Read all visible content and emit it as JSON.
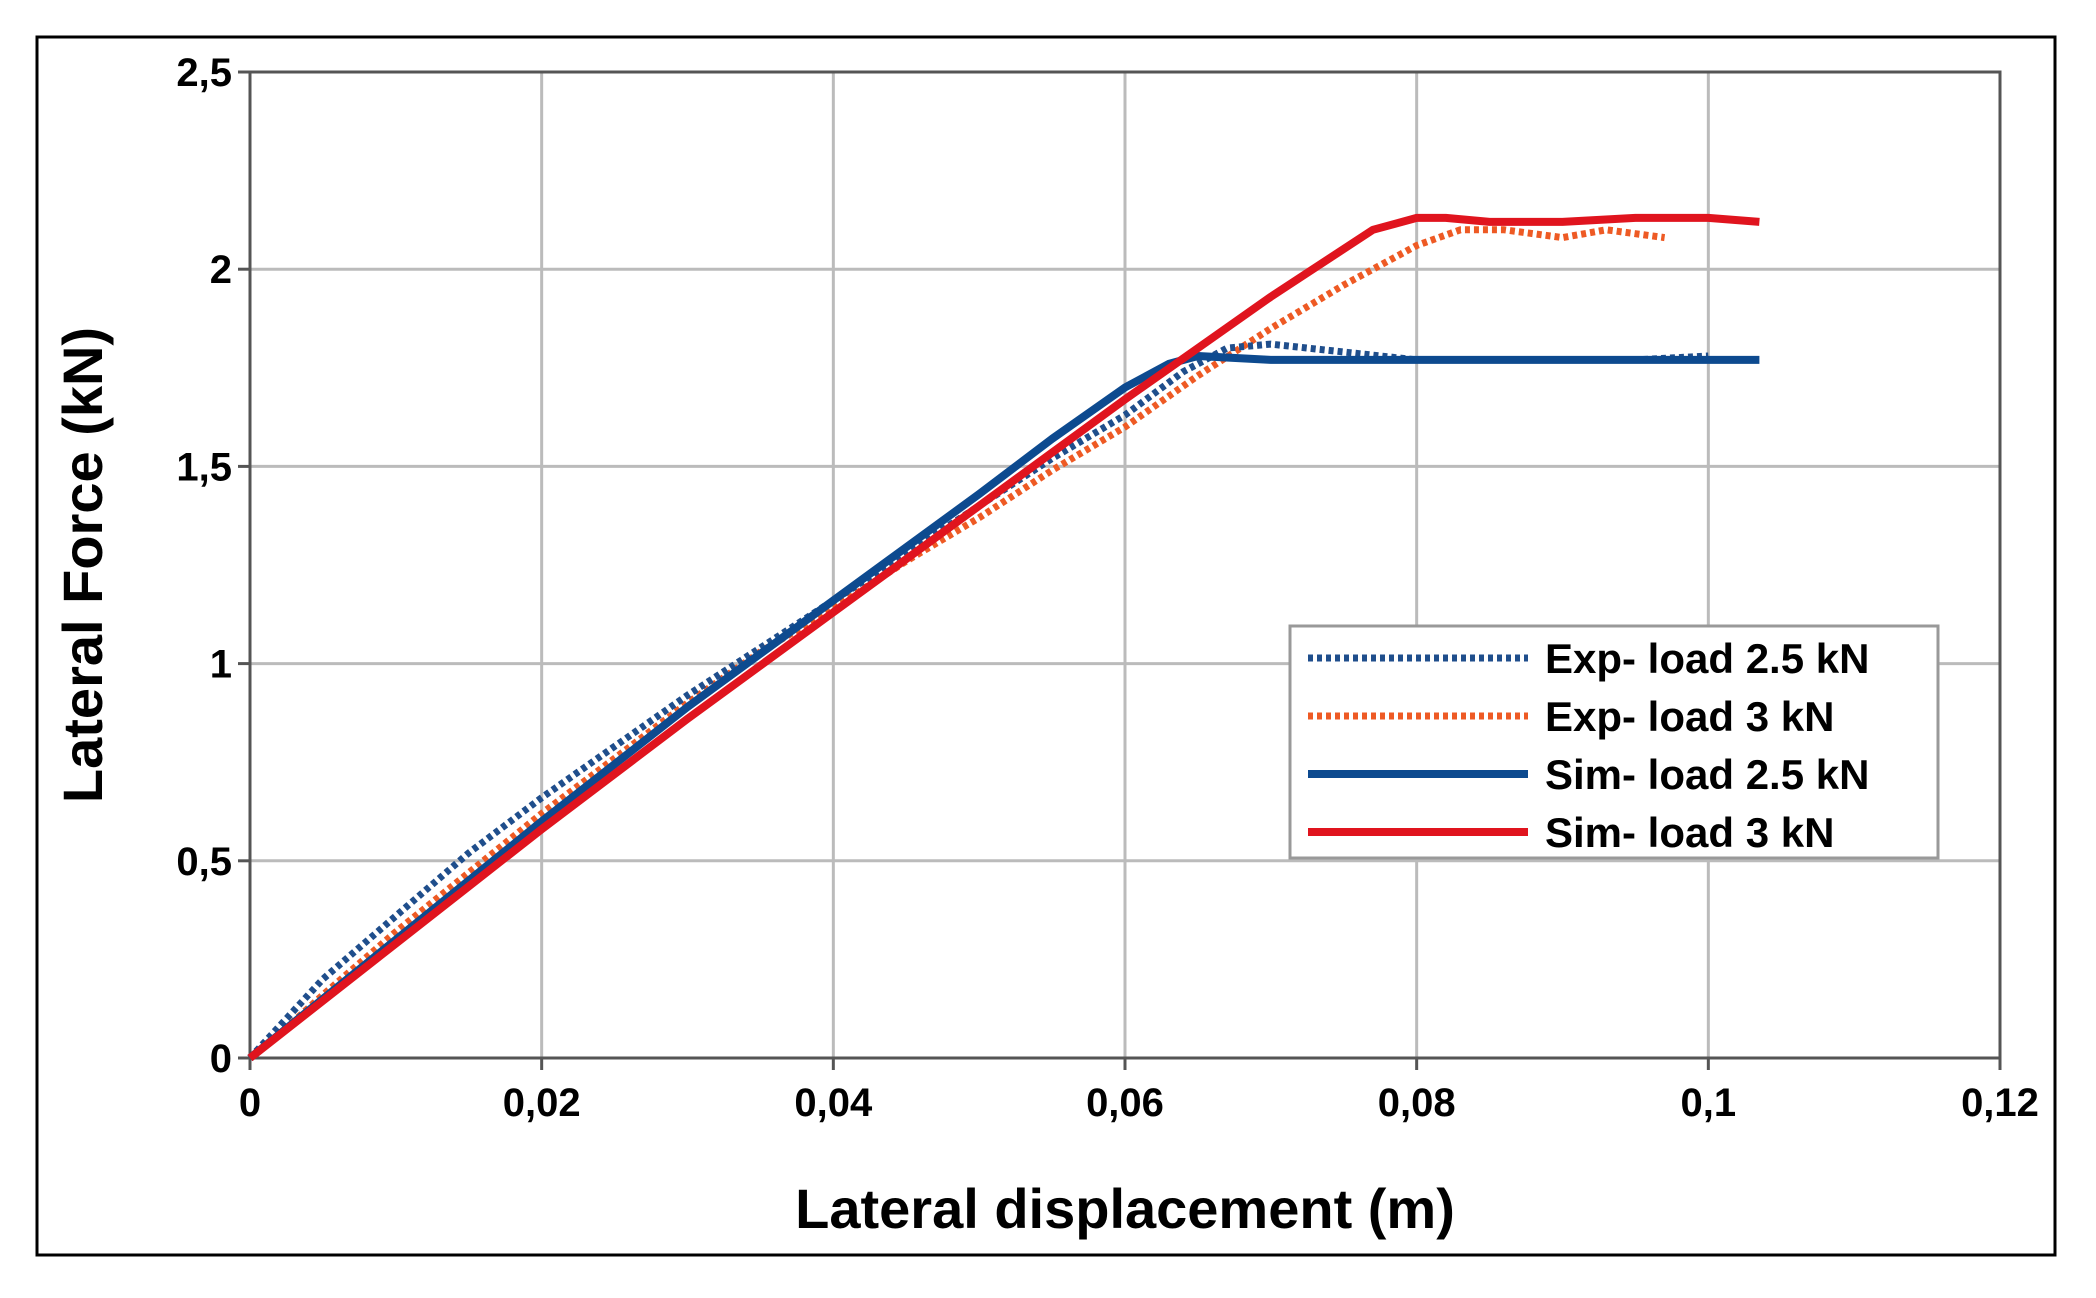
{
  "chart_data": {
    "type": "line",
    "title": "",
    "xlabel": "Lateral displacement (m)",
    "ylabel": "Lateral Force (kN)",
    "xlim": [
      0,
      0.12
    ],
    "ylim": [
      0,
      2.5
    ],
    "xticks": [
      0,
      0.02,
      0.04,
      0.06,
      0.08,
      0.1,
      0.12
    ],
    "xtick_labels": [
      "0",
      "0,02",
      "0,04",
      "0,06",
      "0,08",
      "0,1",
      "0,12"
    ],
    "yticks": [
      0,
      0.5,
      1,
      1.5,
      2,
      2.5
    ],
    "ytick_labels": [
      "0",
      "0,5",
      "1",
      "1,5",
      "2",
      "2,5"
    ],
    "grid": true,
    "legend_position": "center-right",
    "series": [
      {
        "name": "Exp- load 2.5 kN",
        "style": "dotted",
        "color": "#1f4e8c",
        "x": [
          0,
          0.002,
          0.005,
          0.01,
          0.015,
          0.02,
          0.025,
          0.03,
          0.035,
          0.04,
          0.045,
          0.05,
          0.055,
          0.06,
          0.064,
          0.067,
          0.07,
          0.075,
          0.08,
          0.085,
          0.09,
          0.095,
          0.1
        ],
        "y": [
          0,
          0.08,
          0.2,
          0.36,
          0.52,
          0.66,
          0.79,
          0.92,
          1.04,
          1.16,
          1.28,
          1.4,
          1.52,
          1.63,
          1.74,
          1.8,
          1.81,
          1.79,
          1.77,
          1.77,
          1.77,
          1.77,
          1.78
        ]
      },
      {
        "name": "Exp- load 3 kN",
        "style": "dotted",
        "color": "#ee5a24",
        "x": [
          0,
          0.002,
          0.005,
          0.01,
          0.015,
          0.02,
          0.025,
          0.03,
          0.035,
          0.04,
          0.045,
          0.05,
          0.055,
          0.06,
          0.065,
          0.07,
          0.075,
          0.08,
          0.083,
          0.086,
          0.09,
          0.093,
          0.097
        ],
        "y": [
          0,
          0.06,
          0.16,
          0.32,
          0.47,
          0.62,
          0.76,
          0.9,
          1.03,
          1.14,
          1.26,
          1.37,
          1.49,
          1.6,
          1.73,
          1.85,
          1.96,
          2.06,
          2.1,
          2.1,
          2.08,
          2.1,
          2.08
        ]
      },
      {
        "name": "Sim- load 2.5 kN",
        "style": "solid",
        "color": "#0d4a8f",
        "x": [
          0,
          0.01,
          0.02,
          0.03,
          0.04,
          0.05,
          0.055,
          0.06,
          0.063,
          0.065,
          0.07,
          0.08,
          0.09,
          0.1,
          0.1035
        ],
        "y": [
          0,
          0.3,
          0.6,
          0.89,
          1.16,
          1.43,
          1.57,
          1.7,
          1.76,
          1.78,
          1.77,
          1.77,
          1.77,
          1.77,
          1.77
        ]
      },
      {
        "name": "Sim- load 3 kN",
        "style": "solid",
        "color": "#e0141e",
        "x": [
          0,
          0.01,
          0.02,
          0.03,
          0.04,
          0.05,
          0.06,
          0.065,
          0.07,
          0.077,
          0.08,
          0.082,
          0.085,
          0.09,
          0.095,
          0.1,
          0.1035
        ],
        "y": [
          0,
          0.29,
          0.58,
          0.86,
          1.13,
          1.4,
          1.67,
          1.8,
          1.93,
          2.1,
          2.13,
          2.13,
          2.12,
          2.12,
          2.13,
          2.13,
          2.12
        ]
      }
    ]
  }
}
